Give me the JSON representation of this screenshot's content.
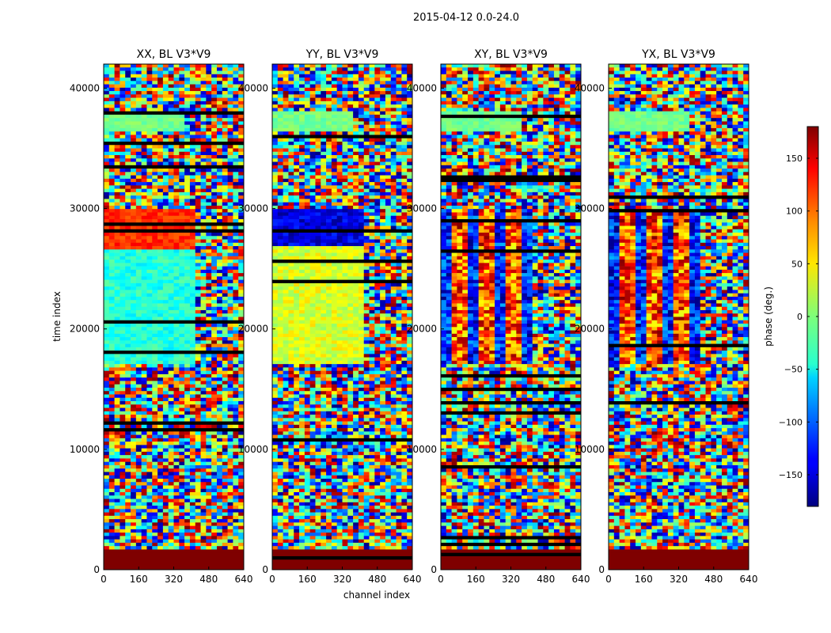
{
  "suptitle": "2015-04-12 0.0-24.0",
  "chart_data": {
    "type": "heatmap",
    "panels": [
      {
        "title": "XX, BL V3*V9"
      },
      {
        "title": "YY, BL V3*V9"
      },
      {
        "title": "XY, BL V3*V9"
      },
      {
        "title": "YX, BL V3*V9"
      }
    ],
    "xlabel": "channel index",
    "ylabel": "time index",
    "xlim": [
      0,
      640
    ],
    "ylim": [
      0,
      42000
    ],
    "xticks": [
      0,
      160,
      320,
      480,
      640
    ],
    "yticks": [
      0,
      10000,
      20000,
      30000,
      40000
    ],
    "colorbar": {
      "label": "phase (deg.)",
      "range": [
        -180,
        180
      ],
      "ticks": [
        -150,
        -100,
        -50,
        0,
        50,
        100,
        150
      ],
      "colormap": "jet"
    }
  }
}
